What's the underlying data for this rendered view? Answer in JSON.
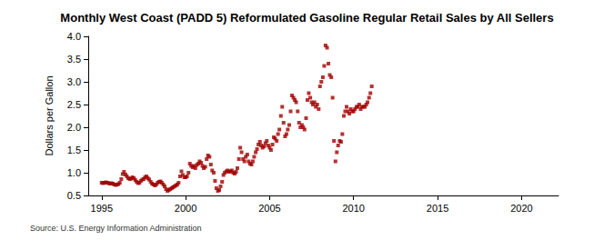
{
  "chart_data": {
    "type": "scatter",
    "title": "Monthly West Coast (PADD 5) Reformulated Gasoline Regular Retail Sales by All Sellers",
    "ylabel": "Dollars per Gallon",
    "source": "Source: U.S. Energy Information Administration",
    "color": "#a00000",
    "marker": "square",
    "grid": false,
    "xlim": [
      1994.2,
      2022.2
    ],
    "xticks": [
      1995,
      2000,
      2005,
      2010,
      2015,
      2020
    ],
    "ylim": [
      0.5,
      4.0
    ],
    "yticks": [
      0.5,
      {
        "value": 1,
        "label": "1.0"
      },
      1.5,
      {
        "value": 2,
        "label": "2.0"
      },
      2.5,
      {
        "value": 3,
        "label": "3.0"
      },
      3.5,
      {
        "value": 4,
        "label": "4.0"
      }
    ],
    "x": [
      1995.0,
      1995.08,
      1995.17,
      1995.25,
      1995.33,
      1995.42,
      1995.5,
      1995.58,
      1995.67,
      1995.75,
      1995.83,
      1995.92,
      1996.0,
      1996.08,
      1996.17,
      1996.25,
      1996.33,
      1996.42,
      1996.5,
      1996.58,
      1996.67,
      1996.75,
      1996.83,
      1996.92,
      1997.0,
      1997.08,
      1997.17,
      1997.25,
      1997.33,
      1997.42,
      1997.5,
      1997.58,
      1997.67,
      1997.75,
      1997.83,
      1997.92,
      1998.0,
      1998.08,
      1998.17,
      1998.25,
      1998.33,
      1998.42,
      1998.5,
      1998.58,
      1998.67,
      1998.75,
      1998.83,
      1998.92,
      1999.0,
      1999.08,
      1999.17,
      1999.25,
      1999.33,
      1999.42,
      1999.5,
      1999.58,
      1999.67,
      1999.75,
      1999.83,
      1999.92,
      2000.0,
      2000.08,
      2000.17,
      2000.25,
      2000.33,
      2000.42,
      2000.5,
      2000.58,
      2000.67,
      2000.75,
      2000.83,
      2000.92,
      2001.0,
      2001.08,
      2001.17,
      2001.25,
      2001.33,
      2001.42,
      2001.5,
      2001.58,
      2001.67,
      2001.75,
      2001.83,
      2001.92,
      2002.0,
      2002.08,
      2002.17,
      2002.25,
      2002.33,
      2002.42,
      2002.5,
      2002.58,
      2002.67,
      2002.75,
      2002.83,
      2002.92,
      2003.0,
      2003.08,
      2003.17,
      2003.25,
      2003.33,
      2003.42,
      2003.5,
      2003.58,
      2003.67,
      2003.75,
      2003.83,
      2003.92,
      2004.0,
      2004.08,
      2004.17,
      2004.25,
      2004.33,
      2004.42,
      2004.5,
      2004.58,
      2004.67,
      2004.75,
      2004.83,
      2004.92,
      2005.0,
      2005.08,
      2005.17,
      2005.25,
      2005.33,
      2005.42,
      2005.5,
      2005.58,
      2005.67,
      2005.75,
      2005.83,
      2005.92,
      2006.0,
      2006.08,
      2006.17,
      2006.25,
      2006.33,
      2006.42,
      2006.5,
      2006.58,
      2006.67,
      2006.75,
      2006.83,
      2006.92,
      2007.0,
      2007.08,
      2007.17,
      2007.25,
      2007.33,
      2007.42,
      2007.5,
      2007.58,
      2007.67,
      2007.75,
      2007.83,
      2007.92,
      2008.0,
      2008.08,
      2008.17,
      2008.25,
      2008.33,
      2008.42,
      2008.5,
      2008.58,
      2008.67,
      2008.75,
      2008.83,
      2008.92,
      2009.0,
      2009.08,
      2009.17,
      2009.25,
      2009.33,
      2009.42,
      2009.5,
      2009.58,
      2009.67,
      2009.75,
      2009.83,
      2009.92,
      2010.0,
      2010.08,
      2010.17,
      2010.25,
      2010.33,
      2010.42,
      2010.5,
      2010.58,
      2010.67,
      2010.75,
      2010.83,
      2010.92,
      2011.0,
      2011.08
    ],
    "values": [
      0.78,
      0.77,
      0.78,
      0.79,
      0.78,
      0.77,
      0.76,
      0.77,
      0.76,
      0.74,
      0.73,
      0.74,
      0.75,
      0.78,
      0.86,
      0.97,
      1.02,
      0.96,
      0.92,
      0.88,
      0.86,
      0.87,
      0.9,
      0.88,
      0.84,
      0.8,
      0.77,
      0.78,
      0.82,
      0.85,
      0.86,
      0.9,
      0.92,
      0.88,
      0.85,
      0.8,
      0.76,
      0.74,
      0.72,
      0.74,
      0.78,
      0.8,
      0.81,
      0.78,
      0.74,
      0.7,
      0.64,
      0.6,
      0.62,
      0.64,
      0.66,
      0.68,
      0.7,
      0.72,
      0.74,
      0.78,
      0.92,
      1.03,
      0.95,
      0.9,
      0.9,
      0.92,
      1.0,
      1.2,
      1.15,
      1.12,
      1.15,
      1.1,
      1.17,
      1.2,
      1.25,
      1.22,
      1.15,
      1.1,
      1.13,
      1.3,
      1.38,
      1.35,
      1.18,
      1.05,
      1.0,
      0.82,
      0.66,
      0.6,
      0.62,
      0.7,
      0.8,
      0.95,
      1.0,
      1.03,
      1.05,
      1.02,
      1.03,
      1.05,
      1.0,
      0.98,
      1.02,
      1.1,
      1.3,
      1.55,
      1.45,
      1.3,
      1.25,
      1.35,
      1.4,
      1.25,
      1.2,
      1.18,
      1.25,
      1.35,
      1.45,
      1.52,
      1.62,
      1.68,
      1.6,
      1.55,
      1.58,
      1.65,
      1.7,
      1.6,
      1.55,
      1.5,
      1.62,
      1.78,
      1.75,
      1.7,
      1.85,
      1.95,
      2.25,
      2.45,
      2.1,
      1.8,
      1.85,
      1.95,
      2.05,
      2.35,
      2.7,
      2.65,
      2.6,
      2.55,
      2.35,
      2.1,
      2.0,
      2.05,
      2.0,
      1.95,
      2.2,
      2.6,
      2.75,
      2.65,
      2.55,
      2.5,
      2.55,
      2.45,
      2.5,
      2.4,
      2.9,
      3.0,
      3.1,
      3.35,
      3.8,
      3.75,
      3.4,
      3.15,
      3.1,
      2.65,
      1.7,
      1.25,
      1.45,
      1.6,
      1.7,
      1.68,
      1.85,
      2.25,
      2.35,
      2.45,
      2.35,
      2.3,
      2.4,
      2.35,
      2.35,
      2.4,
      2.45,
      2.45,
      2.5,
      2.4,
      2.45,
      2.45,
      2.45,
      2.5,
      2.55,
      2.65,
      2.75,
      2.9
    ]
  }
}
